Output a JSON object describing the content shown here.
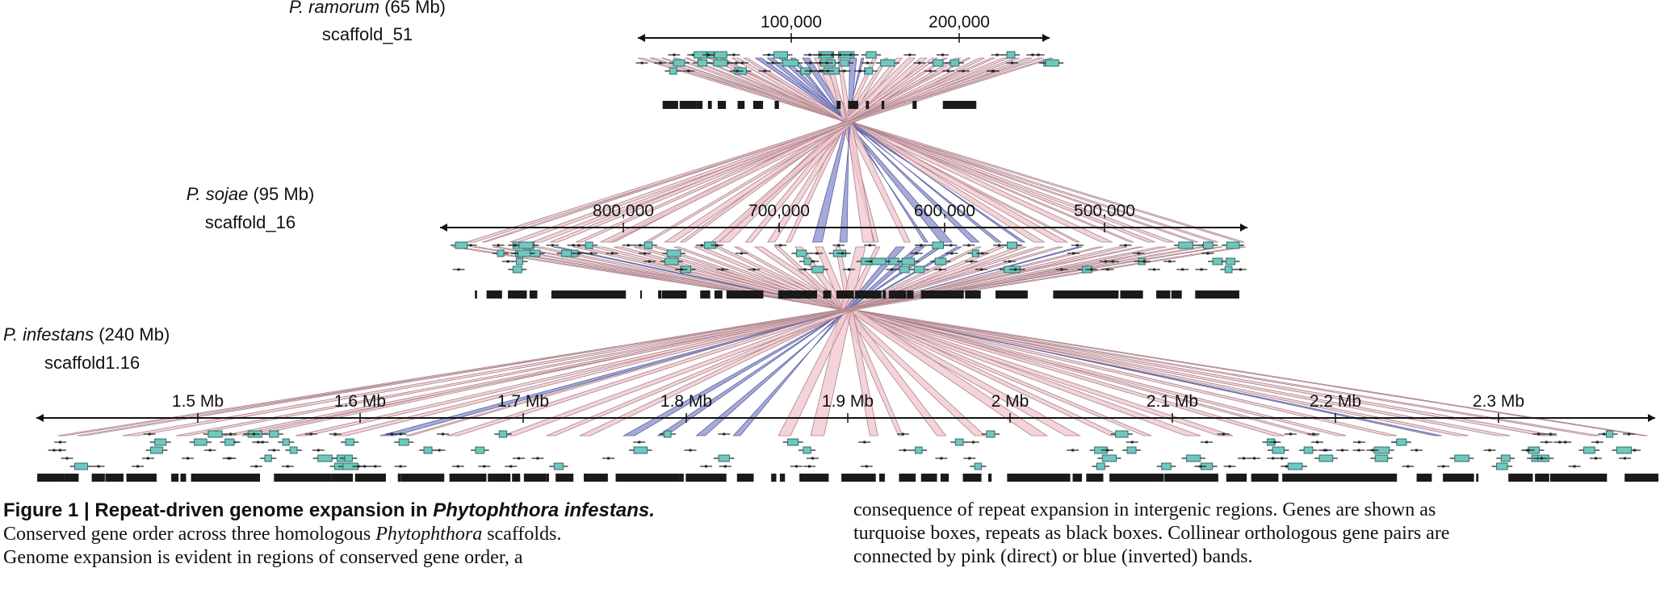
{
  "figure": {
    "tracks": [
      {
        "species": "P. ramorum",
        "size": "(65 Mb)",
        "scaffold": "scaffold_51",
        "ticks": [
          "100,000",
          "200,000"
        ]
      },
      {
        "species": "P. sojae",
        "size": "(95 Mb)",
        "scaffold": "scaffold_16",
        "ticks": [
          "800,000",
          "700,000",
          "600,000",
          "500,000"
        ]
      },
      {
        "species": "P. infestans",
        "size": "(240 Mb)",
        "scaffold": "scaffold1.16",
        "ticks": [
          "1.5 Mb",
          "1.6 Mb",
          "1.7 Mb",
          "1.8 Mb",
          "1.9 Mb",
          "2 Mb",
          "2.1 Mb",
          "2.2 Mb",
          "2.3 Mb"
        ]
      }
    ],
    "colors": {
      "gene": "#6fc7bd",
      "gene_stroke": "#2f6d69",
      "repeat": "#1a1a1a",
      "direct_band": "#f0c6cc",
      "direct_stroke": "#a8838a",
      "inverted_band": "#8f95cf",
      "inverted_stroke": "#5d62a0"
    }
  },
  "caption": {
    "label": "Figure 1",
    "separator": " | ",
    "title_pre": "Repeat-driven genome expansion in ",
    "title_italic": "Phytophthora infestans.",
    "line2_pre": "Conserved gene order across three homologous ",
    "line2_italic": "Phytophthora",
    "line2_post": " scaffolds.",
    "line3": "Genome expansion is evident in regions of conserved gene order, a",
    "right1": "consequence of repeat expansion in intergenic regions. Genes are shown as",
    "right2": "turquoise boxes, repeats as black boxes. Collinear orthologous gene pairs are",
    "right3": "connected by pink (direct) or blue (inverted) bands."
  }
}
